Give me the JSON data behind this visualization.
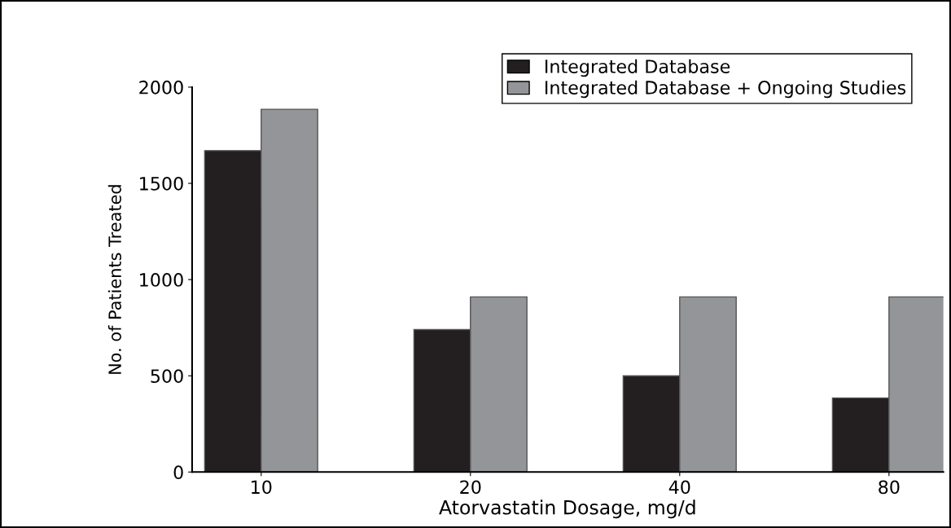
{
  "chart_data": {
    "type": "bar",
    "xlabel": "Atorvastatin Dosage, mg/d",
    "ylabel": "No. of Patients Treated",
    "categories": [
      "10",
      "20",
      "40",
      "80"
    ],
    "series": [
      {
        "name": "Integrated Database",
        "color": "#231f20",
        "values": [
          1670,
          740,
          500,
          385
        ]
      },
      {
        "name": "Integrated Database + Ongoing Studies",
        "color": "#939598",
        "values": [
          1885,
          910,
          910,
          910
        ]
      }
    ],
    "ylim": [
      0,
      2000
    ],
    "yticks": [
      0,
      500,
      1000,
      1500,
      2000
    ],
    "grid": false,
    "legend": "top right"
  }
}
